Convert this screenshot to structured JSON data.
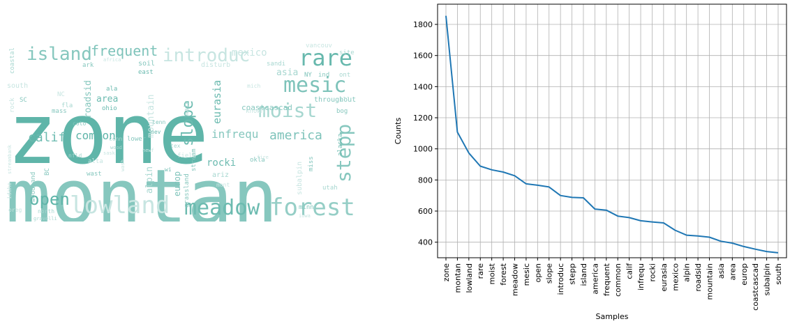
{
  "wordcloud": {
    "words": [
      {
        "text": "zone",
        "size": 120,
        "color": "#5fb5a9"
      },
      {
        "text": "montan",
        "size": 108,
        "color": "#86c7be"
      },
      {
        "text": "lowland",
        "size": 34,
        "color": "#c7e5e1"
      },
      {
        "text": "meadow",
        "size": 30,
        "color": "#6cbbb0"
      },
      {
        "text": "forest",
        "size": 34,
        "color": "#95cec6"
      },
      {
        "text": "rare",
        "size": 32,
        "color": "#67b8ad"
      },
      {
        "text": "mesic",
        "size": 30,
        "color": "#7ec3ba"
      },
      {
        "text": "moist",
        "size": 28,
        "color": "#a7d7d0"
      },
      {
        "text": "open",
        "size": 24,
        "color": "#5fb5a9"
      },
      {
        "text": "island",
        "size": 26,
        "color": "#86c7be"
      },
      {
        "text": "frequent",
        "size": 20,
        "color": "#7ec3ba"
      },
      {
        "text": "introduc",
        "size": 26,
        "color": "#c7e5e1"
      },
      {
        "text": "slope",
        "size": 22,
        "color": "#6cbbb0"
      },
      {
        "text": "stepp",
        "size": 28,
        "color": "#86c7be"
      },
      {
        "text": "america",
        "size": 18,
        "color": "#7ec3ba"
      },
      {
        "text": "calif",
        "size": 18,
        "color": "#6cbbb0"
      },
      {
        "text": "common",
        "size": 16,
        "color": "#5fb5a9"
      },
      {
        "text": "infrequ",
        "size": 16,
        "color": "#86c7be"
      },
      {
        "text": "rocki",
        "size": 14,
        "color": "#6cbbb0"
      },
      {
        "text": "eurasia",
        "size": 15,
        "color": "#6cbbb0"
      },
      {
        "text": "mexico",
        "size": 14,
        "color": "#c7e5e1"
      },
      {
        "text": "alpin",
        "size": 13,
        "color": "#a7d7d0"
      },
      {
        "text": "roadsid",
        "size": 13,
        "color": "#86c7be"
      },
      {
        "text": "mountain",
        "size": 13,
        "color": "#c7e5e1"
      },
      {
        "text": "asia",
        "size": 13,
        "color": "#a7d7d0"
      },
      {
        "text": "area",
        "size": 13,
        "color": "#6cbbb0"
      },
      {
        "text": "europ",
        "size": 12,
        "color": "#7ec3ba"
      },
      {
        "text": "coastcascad",
        "size": 11,
        "color": "#86c7be"
      },
      {
        "text": "subalpin",
        "size": 10,
        "color": "#c7e5e1"
      },
      {
        "text": "south",
        "size": 10,
        "color": "#c7e5e1"
      },
      {
        "text": "coastal",
        "size": 9,
        "color": "#a7d7d0"
      },
      {
        "text": "ark",
        "size": 9,
        "color": "#86c7be"
      },
      {
        "text": "east",
        "size": 9,
        "color": "#6cbbb0"
      },
      {
        "text": "soil",
        "size": 10,
        "color": "#86c7be"
      },
      {
        "text": "disturb",
        "size": 10,
        "color": "#c7e5e1"
      },
      {
        "text": "vancouv",
        "size": 9,
        "color": "#c7e5e1"
      },
      {
        "text": "site",
        "size": 9,
        "color": "#a7d7d0"
      },
      {
        "text": "ont",
        "size": 9,
        "color": "#a7d7d0"
      },
      {
        "text": "ind",
        "size": 9,
        "color": "#86c7be"
      },
      {
        "text": "sandi",
        "size": 9,
        "color": "#a7d7d0"
      },
      {
        "text": "NY",
        "size": 9,
        "color": "#7ec3ba"
      },
      {
        "text": "mich",
        "size": 8,
        "color": "#c7e5e1"
      },
      {
        "text": "main",
        "size": 9,
        "color": "#a7d7d0"
      },
      {
        "text": "ala",
        "size": 9,
        "color": "#6cbbb0"
      },
      {
        "text": "mass",
        "size": 9,
        "color": "#86c7be"
      },
      {
        "text": "SC",
        "size": 9,
        "color": "#86c7be"
      },
      {
        "text": "fla",
        "size": 9,
        "color": "#a7d7d0"
      },
      {
        "text": "NC",
        "size": 9,
        "color": "#c7e5e1"
      },
      {
        "text": "rock",
        "size": 9,
        "color": "#c7e5e1"
      },
      {
        "text": "ohio",
        "size": 9,
        "color": "#6cbbb0"
      },
      {
        "text": "colo",
        "size": 8,
        "color": "#86c7be"
      },
      {
        "text": "conn",
        "size": 8,
        "color": "#a7d7d0"
      },
      {
        "text": "lower",
        "size": 9,
        "color": "#86c7be"
      },
      {
        "text": "nev",
        "size": 8,
        "color": "#6cbbb0"
      },
      {
        "text": "tenn",
        "size": 8,
        "color": "#86c7be"
      },
      {
        "text": "known",
        "size": 9,
        "color": "#c7e5e1"
      },
      {
        "text": "throughout",
        "size": 10,
        "color": "#86c7be"
      },
      {
        "text": "bog",
        "size": 9,
        "color": "#86c7be"
      },
      {
        "text": "ill",
        "size": 9,
        "color": "#a7d7d0"
      },
      {
        "text": "stream",
        "size": 9,
        "color": "#86c7be"
      },
      {
        "text": "tex",
        "size": 8,
        "color": "#a7d7d0"
      },
      {
        "text": "field",
        "size": 9,
        "color": "#c7e5e1"
      },
      {
        "text": "alta",
        "size": 9,
        "color": "#c7e5e1"
      },
      {
        "text": "wast",
        "size": 9,
        "color": "#86c7be"
      },
      {
        "text": "nfld",
        "size": 8,
        "color": "#a7d7d0"
      },
      {
        "text": "BC",
        "size": 9,
        "color": "#86c7be"
      },
      {
        "text": "woodland",
        "size": 9,
        "color": "#86c7be"
      },
      {
        "text": "ariz",
        "size": 10,
        "color": "#a7d7d0"
      },
      {
        "text": "okla",
        "size": 9,
        "color": "#86c7be"
      },
      {
        "text": "miss",
        "size": 9,
        "color": "#86c7be"
      },
      {
        "text": "alaska",
        "size": 9,
        "color": "#6cbbb0"
      },
      {
        "text": "mont",
        "size": 8,
        "color": "#c7e5e1"
      },
      {
        "text": "utah",
        "size": 9,
        "color": "#a7d7d0"
      },
      {
        "text": "minn",
        "size": 9,
        "color": "#86c7be"
      },
      {
        "text": "wi",
        "size": 8,
        "color": "#6cbbb0"
      },
      {
        "text": "grassland",
        "size": 9,
        "color": "#86c7be"
      },
      {
        "text": "idaho",
        "size": 8,
        "color": "#c7e5e1"
      },
      {
        "text": "oreg",
        "size": 8,
        "color": "#c7e5e1"
      },
      {
        "text": "north",
        "size": 8,
        "color": "#a7d7d0"
      },
      {
        "text": "gravelli",
        "size": 7,
        "color": "#a7d7d0"
      },
      {
        "text": "streambank",
        "size": 7,
        "color": "#c7e5e1"
      },
      {
        "text": "africa",
        "size": 7,
        "color": "#c7e5e1"
      },
      {
        "text": "fire",
        "size": 7,
        "color": "#c7e5e1"
      },
      {
        "text": "wood",
        "size": 7,
        "color": "#a7d7d0"
      },
      {
        "text": "sask",
        "size": 7,
        "color": "#c7e5e1"
      },
      {
        "text": "newf",
        "size": 7,
        "color": "#c7e5e1"
      },
      {
        "text": "wash",
        "size": 7,
        "color": "#c7e5e1"
      },
      {
        "text": "iowa",
        "size": 7,
        "color": "#c7e5e1"
      }
    ]
  },
  "chart_data": {
    "type": "line",
    "xlabel": "Samples",
    "ylabel": "Counts",
    "ylim": [
      300,
      1930
    ],
    "yticks": [
      400,
      600,
      800,
      1000,
      1200,
      1400,
      1600,
      1800
    ],
    "grid": true,
    "line_color": "#1f77b4",
    "categories": [
      "zone",
      "montan",
      "lowland",
      "rare",
      "moist",
      "forest",
      "meadow",
      "mesic",
      "open",
      "slope",
      "introduc",
      "stepp",
      "island",
      "america",
      "frequent",
      "common",
      "calif",
      "infrequ",
      "rocki",
      "eurasia",
      "mexico",
      "alpin",
      "roadsid",
      "mountain",
      "asia",
      "area",
      "europ",
      "coastcascad",
      "subalpin",
      "south"
    ],
    "series": [
      {
        "values": [
          1855,
          1108,
          973,
          889,
          865,
          851,
          827,
          775,
          766,
          755,
          700,
          688,
          685,
          613,
          606,
          568,
          558,
          538,
          530,
          524,
          477,
          445,
          440,
          432,
          406,
          394,
          372,
          355,
          340,
          332
        ]
      }
    ]
  }
}
